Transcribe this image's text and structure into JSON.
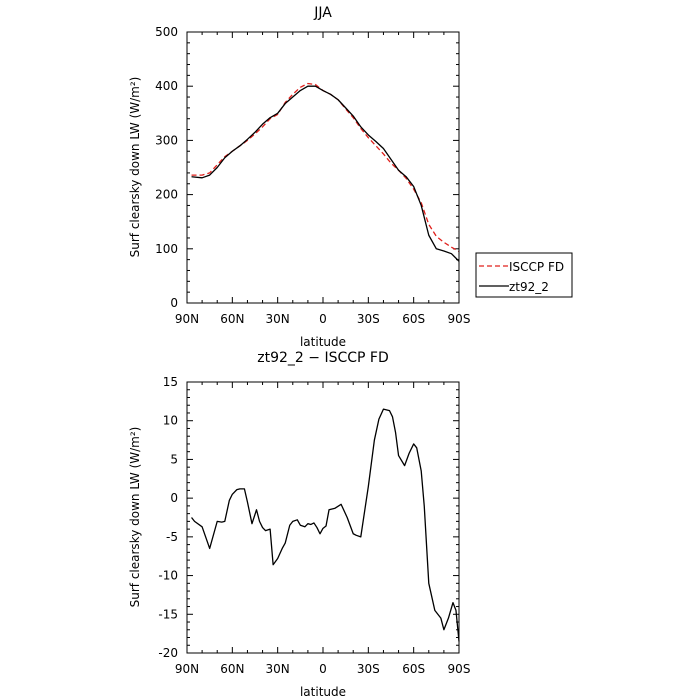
{
  "chart_data": [
    {
      "type": "line",
      "title": "JJA",
      "xlabel": "latitude",
      "ylabel": "Surf clearsky down LW (W/m²)",
      "ylim": [
        0,
        500
      ],
      "xlim": [
        -90,
        90
      ],
      "xticks": [
        {
          "value": -90,
          "label": "90N"
        },
        {
          "value": -60,
          "label": "60N"
        },
        {
          "value": -30,
          "label": "30N"
        },
        {
          "value": 0,
          "label": "0"
        },
        {
          "value": 30,
          "label": "30S"
        },
        {
          "value": 60,
          "label": "60S"
        },
        {
          "value": 90,
          "label": "90S"
        }
      ],
      "yticks": [
        0,
        100,
        200,
        300,
        400,
        500
      ],
      "legend": "outside-right",
      "series": [
        {
          "name": "ISCCP FD",
          "color": "#e0201c",
          "dash": "dashed",
          "x": [
            -87,
            -80,
            -75,
            -70,
            -65,
            -60,
            -55,
            -50,
            -45,
            -40,
            -35,
            -30,
            -25,
            -20,
            -15,
            -10,
            -5,
            0,
            5,
            10,
            15,
            20,
            25,
            30,
            35,
            40,
            45,
            50,
            55,
            60,
            65,
            70,
            75,
            80,
            85,
            90
          ],
          "y": [
            236,
            236,
            240,
            255,
            270,
            280,
            290,
            300,
            312,
            325,
            340,
            348,
            370,
            385,
            398,
            405,
            403,
            392,
            385,
            375,
            358,
            342,
            322,
            305,
            290,
            275,
            258,
            245,
            230,
            210,
            185,
            145,
            123,
            112,
            103,
            95
          ]
        },
        {
          "name": "zt92_2",
          "color": "#000000",
          "dash": "solid",
          "x": [
            -87,
            -80,
            -75,
            -70,
            -65,
            -60,
            -55,
            -50,
            -45,
            -40,
            -35,
            -30,
            -25,
            -20,
            -15,
            -10,
            -5,
            0,
            5,
            10,
            15,
            20,
            25,
            30,
            35,
            40,
            45,
            50,
            55,
            60,
            65,
            70,
            75,
            80,
            85,
            90
          ],
          "y": [
            233,
            231,
            236,
            250,
            268,
            280,
            290,
            302,
            315,
            330,
            342,
            350,
            368,
            380,
            392,
            400,
            400,
            392,
            385,
            375,
            360,
            345,
            325,
            310,
            298,
            285,
            265,
            245,
            233,
            215,
            180,
            125,
            100,
            96,
            91,
            77
          ]
        }
      ]
    },
    {
      "type": "line",
      "title": "zt92_2 − ISCCP FD",
      "xlabel": "latitude",
      "ylabel": "Surf clearsky down LW (W/m²)",
      "ylim": [
        -20,
        15
      ],
      "xlim": [
        -90,
        90
      ],
      "xticks": [
        {
          "value": -90,
          "label": "90N"
        },
        {
          "value": -60,
          "label": "60N"
        },
        {
          "value": -30,
          "label": "30N"
        },
        {
          "value": 0,
          "label": "0"
        },
        {
          "value": 30,
          "label": "30S"
        },
        {
          "value": 60,
          "label": "60S"
        },
        {
          "value": 90,
          "label": "90S"
        }
      ],
      "yticks": [
        -20,
        -15,
        -10,
        -5,
        0,
        5,
        10,
        15
      ],
      "series": [
        {
          "color": "#000000",
          "dash": "solid",
          "x": [
            -87,
            -85,
            -80,
            -75,
            -70,
            -67,
            -65,
            -62,
            -60,
            -57,
            -55,
            -52,
            -50,
            -47,
            -44,
            -42,
            -40,
            -38,
            -35,
            -33,
            -30,
            -27,
            -25,
            -22,
            -20,
            -17,
            -15,
            -12,
            -10,
            -8,
            -6,
            -4,
            -2,
            0,
            2,
            4,
            8,
            12,
            16,
            20,
            22,
            25,
            30,
            34,
            37,
            40,
            44,
            46,
            48,
            50,
            54,
            57,
            60,
            62,
            65,
            67,
            70,
            74,
            78,
            80,
            83,
            86,
            88,
            90
          ],
          "y": [
            -2.5,
            -3.0,
            -3.7,
            -6.5,
            -3.0,
            -3.1,
            -3.0,
            -0.3,
            0.5,
            1.1,
            1.2,
            1.2,
            -0.5,
            -3.3,
            -1.5,
            -3.0,
            -3.8,
            -4.2,
            -4.0,
            -8.6,
            -7.8,
            -6.5,
            -5.8,
            -3.5,
            -3.0,
            -2.8,
            -3.5,
            -3.7,
            -3.3,
            -3.4,
            -3.2,
            -3.8,
            -4.6,
            -3.9,
            -3.6,
            -1.5,
            -1.3,
            -0.8,
            -2.5,
            -4.6,
            -4.8,
            -5.0,
            1.5,
            7.5,
            10.2,
            11.5,
            11.3,
            10.5,
            8.5,
            5.5,
            4.2,
            5.8,
            7.0,
            6.5,
            3.5,
            -1.0,
            -11.0,
            -14.5,
            -15.5,
            -17.0,
            -15.5,
            -13.5,
            -14.5,
            -18.5
          ]
        }
      ]
    }
  ]
}
